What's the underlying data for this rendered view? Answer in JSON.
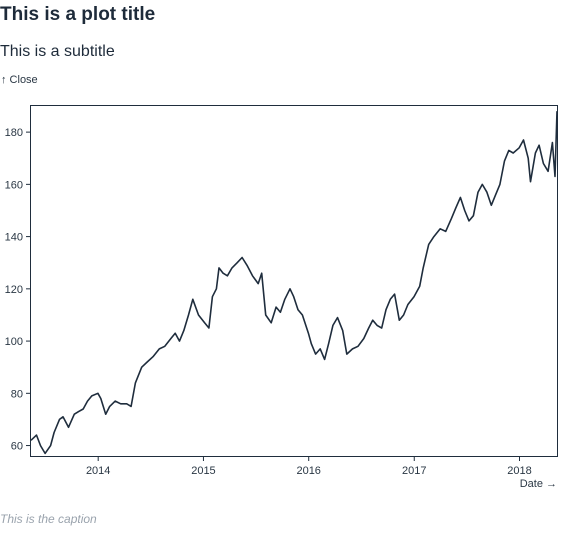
{
  "title": "This is a plot title",
  "subtitle": "This is a subtitle",
  "caption": "This is the caption",
  "colors": {
    "line": "#1f2d3d",
    "axis": "#1f2d3d",
    "text": "#2a3744",
    "caption": "#9aa3ad"
  },
  "chart_data": {
    "type": "line",
    "ylabel": "↑ Close",
    "xlabel": "Date →",
    "xlim": [
      "2013-05-13",
      "2018-05-11"
    ],
    "ylim": [
      56,
      190
    ],
    "x_ticks": [
      "2014",
      "2015",
      "2016",
      "2017",
      "2018"
    ],
    "y_ticks": [
      60,
      80,
      100,
      120,
      140,
      160,
      180
    ],
    "grid": false,
    "series": [
      {
        "x": [
          "2013-05-13",
          "2013-06-01",
          "2013-06-15",
          "2013-07-01",
          "2013-07-20",
          "2013-08-01",
          "2013-08-20",
          "2013-09-01",
          "2013-09-20",
          "2013-10-10",
          "2013-10-25",
          "2013-11-10",
          "2013-11-25",
          "2013-12-10",
          "2013-12-31",
          "2014-01-10",
          "2014-01-27",
          "2014-02-10",
          "2014-03-01",
          "2014-03-20",
          "2014-04-10",
          "2014-04-25",
          "2014-05-10",
          "2014-06-01",
          "2014-06-20",
          "2014-07-10",
          "2014-08-01",
          "2014-08-20",
          "2014-09-10",
          "2014-09-25",
          "2014-10-10",
          "2014-10-25",
          "2014-11-10",
          "2014-11-25",
          "2014-12-15",
          "2015-01-05",
          "2015-01-20",
          "2015-02-01",
          "2015-02-15",
          "2015-02-24",
          "2015-03-10",
          "2015-03-25",
          "2015-04-10",
          "2015-04-28",
          "2015-05-15",
          "2015-06-01",
          "2015-06-20",
          "2015-07-10",
          "2015-07-22",
          "2015-08-05",
          "2015-08-24",
          "2015-09-10",
          "2015-09-25",
          "2015-10-10",
          "2015-10-28",
          "2015-11-10",
          "2015-11-25",
          "2015-12-10",
          "2015-12-31",
          "2016-01-10",
          "2016-01-25",
          "2016-02-10",
          "2016-02-25",
          "2016-03-10",
          "2016-03-25",
          "2016-04-10",
          "2016-04-28",
          "2016-05-12",
          "2016-06-01",
          "2016-06-20",
          "2016-07-10",
          "2016-07-27",
          "2016-08-10",
          "2016-08-25",
          "2016-09-10",
          "2016-09-25",
          "2016-10-10",
          "2016-10-25",
          "2016-11-10",
          "2016-11-25",
          "2016-12-10",
          "2016-12-31",
          "2017-01-20",
          "2017-02-01",
          "2017-02-20",
          "2017-03-10",
          "2017-04-01",
          "2017-04-20",
          "2017-05-10",
          "2017-05-25",
          "2017-06-10",
          "2017-06-25",
          "2017-07-10",
          "2017-07-25",
          "2017-08-10",
          "2017-08-25",
          "2017-09-10",
          "2017-09-25",
          "2017-10-10",
          "2017-10-25",
          "2017-11-10",
          "2017-11-25",
          "2017-12-10",
          "2017-12-31",
          "2018-01-15",
          "2018-01-31",
          "2018-02-08",
          "2018-02-25",
          "2018-03-10",
          "2018-03-25",
          "2018-04-10",
          "2018-04-25",
          "2018-05-04",
          "2018-05-11"
        ],
        "y": [
          62,
          64,
          60,
          57,
          60,
          65,
          70,
          71,
          67,
          72,
          73,
          74,
          77,
          79,
          80,
          78,
          72,
          75,
          77,
          76,
          76,
          75,
          84,
          90,
          92,
          94,
          97,
          98,
          101,
          103,
          100,
          104,
          110,
          116,
          110,
          107,
          105,
          117,
          120,
          128,
          126,
          125,
          128,
          130,
          132,
          129,
          125,
          122,
          126,
          110,
          107,
          113,
          111,
          116,
          120,
          117,
          112,
          110,
          103,
          99,
          95,
          97,
          93,
          99,
          106,
          109,
          104,
          95,
          97,
          98,
          101,
          105,
          108,
          106,
          105,
          112,
          116,
          118,
          108,
          110,
          114,
          117,
          121,
          128,
          137,
          140,
          143,
          142,
          147,
          151,
          155,
          150,
          146,
          148,
          157,
          160,
          157,
          152,
          156,
          160,
          169,
          173,
          172,
          174,
          177,
          170,
          161,
          172,
          175,
          168,
          165,
          176,
          163,
          188
        ]
      }
    ]
  }
}
